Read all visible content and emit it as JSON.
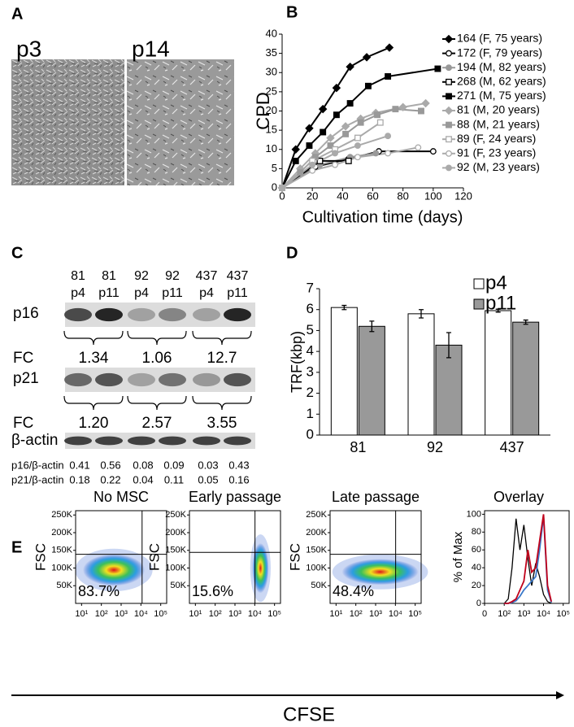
{
  "panel_labels": [
    "A",
    "B",
    "C",
    "D",
    "E"
  ],
  "panel_a": {
    "labels": [
      "p3",
      "p14"
    ]
  },
  "panel_c": {
    "lanes": [
      [
        "81",
        "p4"
      ],
      [
        "81",
        "p11"
      ],
      [
        "92",
        "p4"
      ],
      [
        "92",
        "p11"
      ],
      [
        "437",
        "p4"
      ],
      [
        "437",
        "p11"
      ]
    ],
    "rows": [
      {
        "name": "p16",
        "fc_label": "FC",
        "fc": [
          "1.34",
          "1.06",
          "12.7"
        ]
      },
      {
        "name": "p21",
        "fc_label": "FC",
        "fc": [
          "1.20",
          "2.57",
          "3.55"
        ]
      }
    ],
    "loading": "β-actin",
    "ratios": [
      {
        "name": "p16/β-actin",
        "values": [
          "0.41",
          "0.56",
          "0.08",
          "0.09",
          "0.03",
          "0.43"
        ]
      },
      {
        "name": "p21/β-actin",
        "values": [
          "0.18",
          "0.22",
          "0.04",
          "0.11",
          "0.05",
          "0.16"
        ]
      }
    ]
  },
  "panel_e": {
    "x_label": "CFSE"
  },
  "chart_data": [
    {
      "type": "line",
      "ylabel": "CPD",
      "xlabel": "Cultivation time (days)",
      "xlim": [
        0,
        120
      ],
      "xticks": [
        0,
        20,
        40,
        60,
        80,
        100,
        120
      ],
      "ylim": [
        0,
        40
      ],
      "yticks": [
        0,
        5,
        10,
        15,
        20,
        25,
        30,
        35,
        40
      ],
      "legend": "right",
      "series": [
        {
          "name": "164 (F, 75 years)",
          "color": "#000000",
          "marker": "diamond",
          "fill": "filled",
          "x": [
            0,
            9,
            18,
            27,
            36,
            45,
            56,
            71
          ],
          "values": [
            0,
            10,
            15.5,
            20.5,
            26,
            31.5,
            34,
            36.5
          ]
        },
        {
          "name": "172 (F, 79 years)",
          "color": "#000000",
          "marker": "circle",
          "fill": "open",
          "x": [
            0,
            22,
            44,
            64,
            100
          ],
          "values": [
            0,
            5.5,
            7.5,
            9.5,
            9.5
          ]
        },
        {
          "name": "194 (M, 82 years)",
          "color": "#999999",
          "marker": "circle",
          "fill": "filled",
          "x": [
            0,
            25,
            45,
            62
          ],
          "values": [
            0,
            6,
            8,
            9
          ]
        },
        {
          "name": "268 (M, 62 years)",
          "color": "#000000",
          "marker": "square",
          "fill": "open",
          "x": [
            0,
            25,
            44
          ],
          "values": [
            0,
            7,
            7
          ]
        },
        {
          "name": "271 (M, 75 years)",
          "color": "#000000",
          "marker": "square",
          "fill": "filled",
          "x": [
            0,
            9,
            18,
            27,
            36,
            45,
            57,
            70,
            103
          ],
          "values": [
            0,
            7,
            11,
            14.5,
            19,
            22,
            26.5,
            29,
            31
          ]
        },
        {
          "name": "81 (M, 20 years)",
          "color": "#aaaaaa",
          "marker": "diamond",
          "fill": "filled",
          "x": [
            0,
            12,
            22,
            32,
            42,
            52,
            62,
            80,
            95
          ],
          "values": [
            0,
            5,
            9,
            13,
            16,
            18,
            19.5,
            21,
            22
          ]
        },
        {
          "name": "88 (M, 21 years)",
          "color": "#999999",
          "marker": "square",
          "fill": "filled",
          "x": [
            0,
            12,
            22,
            32,
            42,
            52,
            63,
            75,
            92
          ],
          "values": [
            0,
            4,
            8,
            11,
            14,
            17,
            19,
            20.5,
            20
          ]
        },
        {
          "name": "89 (F, 24 years)",
          "color": "#aaaaaa",
          "marker": "square",
          "fill": "open",
          "x": [
            0,
            20,
            35,
            50,
            65
          ],
          "values": [
            0,
            7,
            10,
            13,
            17
          ]
        },
        {
          "name": "91 (F, 23 years)",
          "color": "#aaaaaa",
          "marker": "circle",
          "fill": "open",
          "x": [
            0,
            20,
            35,
            50,
            70,
            90
          ],
          "values": [
            0,
            4.5,
            6,
            8,
            9,
            10.5
          ]
        },
        {
          "name": "92 (M, 23 years)",
          "color": "#aaaaaa",
          "marker": "circle",
          "fill": "filled",
          "x": [
            0,
            20,
            35,
            50,
            70
          ],
          "values": [
            0,
            6,
            9,
            11,
            13.5
          ]
        }
      ]
    },
    {
      "type": "bar",
      "ylabel": "TRF(kbp)",
      "categories": [
        "81",
        "92",
        "437"
      ],
      "ylim": [
        0,
        7
      ],
      "yticks": [
        0,
        1,
        2,
        3,
        4,
        5,
        6,
        7
      ],
      "legend": "top-right",
      "series": [
        {
          "name": "p4",
          "color": "#ffffff",
          "values": [
            6.1,
            5.8,
            5.95
          ],
          "errors": [
            0.1,
            0.2,
            0.07
          ]
        },
        {
          "name": "p11",
          "color": "#999999",
          "values": [
            5.2,
            4.3,
            5.4
          ],
          "errors": [
            0.25,
            0.6,
            0.1
          ]
        }
      ]
    },
    {
      "type": "density",
      "title": "No MSC",
      "ylabel": "FSC",
      "xlog": true,
      "annotation": "83.7%",
      "xlim": [
        5,
        200000
      ],
      "xticks": [
        {
          "value": 10,
          "label": "10¹"
        },
        {
          "value": 100,
          "label": "10²"
        },
        {
          "value": 1000,
          "label": "10³"
        },
        {
          "value": 10000,
          "label": "10⁴"
        },
        {
          "value": 100000,
          "label": "10⁵"
        }
      ],
      "ylim": [
        0,
        262144
      ],
      "yticks": [
        {
          "value": 50000,
          "label": "50K"
        },
        {
          "value": 100000,
          "label": "100K"
        },
        {
          "value": 150000,
          "label": "150K"
        },
        {
          "value": 200000,
          "label": "200K"
        },
        {
          "value": 250000,
          "label": "250K"
        }
      ]
    },
    {
      "type": "density",
      "title": "Early passage",
      "ylabel": "FSC",
      "xlog": true,
      "annotation": "15.6%",
      "xlim": [
        5,
        200000
      ],
      "xticks": [
        {
          "value": 10,
          "label": "10¹"
        },
        {
          "value": 100,
          "label": "10²"
        },
        {
          "value": 1000,
          "label": "10³"
        },
        {
          "value": 10000,
          "label": "10⁴"
        },
        {
          "value": 100000,
          "label": "10⁵"
        }
      ],
      "ylim": [
        0,
        262144
      ],
      "yticks": [
        {
          "value": 50000,
          "label": "50K"
        },
        {
          "value": 100000,
          "label": "100K"
        },
        {
          "value": 150000,
          "label": "150K"
        },
        {
          "value": 200000,
          "label": "200K"
        },
        {
          "value": 250000,
          "label": "250K"
        }
      ]
    },
    {
      "type": "density",
      "title": "Late passage",
      "ylabel": "FSC",
      "xlog": true,
      "annotation": "48.4%",
      "xlim": [
        5,
        200000
      ],
      "xticks": [
        {
          "value": 10,
          "label": "10¹"
        },
        {
          "value": 100,
          "label": "10²"
        },
        {
          "value": 1000,
          "label": "10³"
        },
        {
          "value": 10000,
          "label": "10⁴"
        },
        {
          "value": 100000,
          "label": "10⁵"
        }
      ],
      "ylim": [
        0,
        262144
      ],
      "yticks": [
        {
          "value": 50000,
          "label": "50K"
        },
        {
          "value": 100000,
          "label": "100K"
        },
        {
          "value": 150000,
          "label": "150K"
        },
        {
          "value": 200000,
          "label": "200K"
        },
        {
          "value": 250000,
          "label": "250K"
        }
      ]
    },
    {
      "type": "histogram-overlay",
      "title": "Overlay",
      "ylabel": "% of Max",
      "xscale": "biex",
      "xlim": [
        0,
        200000
      ],
      "xticks": [
        0,
        {
          "value": 100,
          "label": "10²"
        },
        {
          "value": 1000,
          "label": "10³"
        },
        {
          "value": 10000,
          "label": "10⁴"
        },
        {
          "value": 100000,
          "label": "10⁵"
        }
      ],
      "ylim": [
        0,
        104
      ],
      "yticks": [
        0,
        20,
        40,
        60,
        80,
        100
      ],
      "x": [
        100,
        160,
        250,
        400,
        630,
        1000,
        1600,
        2500,
        4000,
        6300,
        10000,
        16000,
        25000
      ],
      "series": [
        {
          "color": "#000000",
          "values": [
            0,
            5,
            40,
            95,
            60,
            88,
            50,
            20,
            45,
            30,
            10,
            2,
            0
          ]
        },
        {
          "color": "#3a78c8",
          "values": [
            0,
            0,
            1,
            3,
            8,
            15,
            20,
            25,
            30,
            60,
            98,
            15,
            1
          ]
        },
        {
          "color": "#c0001a",
          "values": [
            0,
            0,
            2,
            5,
            15,
            25,
            60,
            35,
            40,
            70,
            100,
            20,
            2
          ]
        }
      ]
    }
  ]
}
